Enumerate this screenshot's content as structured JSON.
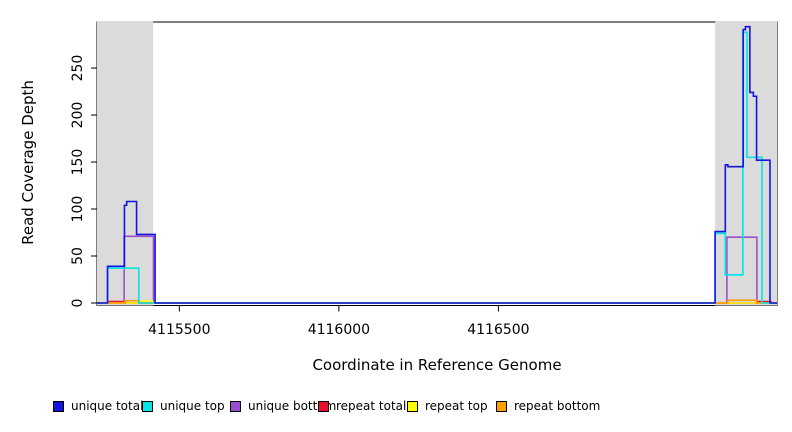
{
  "figure": {
    "xlabel": "Coordinate in Reference Genome",
    "ylabel": "Read Coverage Depth"
  },
  "chart_data": {
    "type": "line",
    "subtype": "step-coverage",
    "title": "",
    "xlabel": "Coordinate in Reference Genome",
    "ylabel": "Read Coverage Depth",
    "xlim": [
      4115242,
      4117373
    ],
    "ylim": [
      0,
      299
    ],
    "x_ticks": [
      4115500,
      4116000,
      4116500
    ],
    "y_ticks": [
      0,
      50,
      100,
      150,
      200,
      250
    ],
    "grid": false,
    "legend_position": "bottom",
    "band_color": "#dbdbdb",
    "shaded_regions": [
      [
        4115242,
        4115418
      ],
      [
        4117179,
        4117373
      ]
    ],
    "series": [
      {
        "name": "unique total",
        "color": "#1414dc",
        "points": [
          [
            4115242,
            0
          ],
          [
            4115275,
            39
          ],
          [
            4115328,
            104
          ],
          [
            4115335,
            108
          ],
          [
            4115366,
            73
          ],
          [
            4115424,
            0
          ],
          [
            4117179,
            76
          ],
          [
            4117211,
            147
          ],
          [
            4117219,
            145
          ],
          [
            4117267,
            291
          ],
          [
            4117274,
            294
          ],
          [
            4117288,
            224
          ],
          [
            4117299,
            220
          ],
          [
            4117309,
            152
          ],
          [
            4117351,
            0
          ]
        ]
      },
      {
        "name": "unique top",
        "color": "#00e6e6",
        "points": [
          [
            4115242,
            0
          ],
          [
            4115275,
            37
          ],
          [
            4115373,
            0
          ],
          [
            4117179,
            74
          ],
          [
            4117211,
            30
          ],
          [
            4117266,
            288
          ],
          [
            4117279,
            155
          ],
          [
            4117326,
            0
          ]
        ]
      },
      {
        "name": "unique bottom",
        "color": "#9b4fd0",
        "points": [
          [
            4115242,
            0
          ],
          [
            4115327,
            71
          ],
          [
            4115419,
            0
          ],
          [
            4117216,
            70
          ],
          [
            4117310,
            0
          ]
        ]
      },
      {
        "name": "repeat total",
        "color": "#e8102e",
        "points": [
          [
            4115242,
            0
          ],
          [
            4115280,
            1.5
          ],
          [
            4115330,
            0
          ],
          [
            4117309,
            1.5
          ],
          [
            4117354,
            0
          ]
        ]
      },
      {
        "name": "repeat top",
        "color": "#ffff00",
        "points": [
          [
            4115242,
            0
          ],
          [
            4115374,
            2
          ],
          [
            4115416,
            0
          ]
        ]
      },
      {
        "name": "repeat bottom",
        "color": "#ffa000",
        "points": [
          [
            4115242,
            0
          ],
          [
            4115330,
            2.5
          ],
          [
            4115374,
            0
          ],
          [
            4117219,
            3
          ],
          [
            4117309,
            0
          ]
        ]
      }
    ]
  }
}
